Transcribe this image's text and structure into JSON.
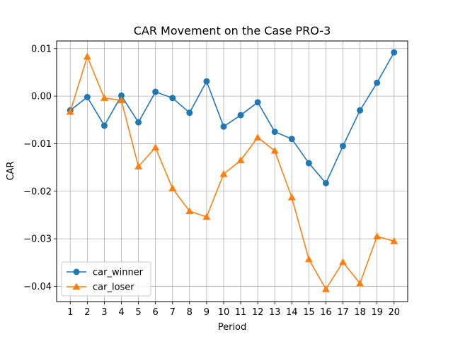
{
  "chart_data": {
    "type": "line",
    "title": "CAR Movement on the Case PRO-3",
    "xlabel": "Period",
    "ylabel": "CAR",
    "x": [
      1,
      2,
      3,
      4,
      5,
      6,
      7,
      8,
      9,
      10,
      11,
      12,
      13,
      14,
      15,
      16,
      17,
      18,
      19,
      20
    ],
    "xticks": [
      "1",
      "2",
      "3",
      "4",
      "5",
      "6",
      "7",
      "8",
      "9",
      "10",
      "11",
      "12",
      "13",
      "14",
      "15",
      "16",
      "17",
      "18",
      "19",
      "20"
    ],
    "yticks": [
      "0.01",
      "0.00",
      "−0.01",
      "−0.02",
      "−0.03",
      "−0.04"
    ],
    "ytick_values": [
      0.01,
      0.0,
      -0.01,
      -0.02,
      -0.03,
      -0.04
    ],
    "xlim": [
      0.2,
      20.8
    ],
    "ylim": [
      -0.0432,
      0.0116
    ],
    "grid": true,
    "legend_position": "lower-left",
    "series": [
      {
        "name": "car_winner",
        "marker": "circle",
        "color": "#1f77b4",
        "values": [
          -0.003,
          -0.0002,
          -0.0062,
          0.0001,
          -0.0055,
          0.0009,
          -0.0004,
          -0.0035,
          0.0031,
          -0.0064,
          -0.004,
          -0.0013,
          -0.0075,
          -0.009,
          -0.0141,
          -0.0183,
          -0.0105,
          -0.003,
          0.0028,
          0.0092
        ]
      },
      {
        "name": "car_loser",
        "marker": "triangle",
        "color": "#ff7f0e",
        "values": [
          -0.0033,
          0.0083,
          -0.0004,
          -0.0009,
          -0.0148,
          -0.0108,
          -0.0194,
          -0.0242,
          -0.0254,
          -0.0164,
          -0.0135,
          -0.0087,
          -0.0115,
          -0.0213,
          -0.0343,
          -0.0406,
          -0.0349,
          -0.0394,
          -0.0295,
          -0.0305
        ]
      }
    ]
  }
}
